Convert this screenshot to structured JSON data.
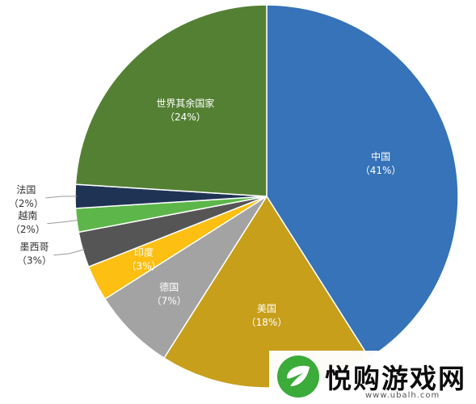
{
  "chart_data": {
    "type": "pie",
    "slices": [
      {
        "label": "中国",
        "value": 41,
        "pct_text": "（41%）",
        "color": "#3673b8",
        "label_pos": "inside"
      },
      {
        "label": "美国",
        "value": 18,
        "pct_text": "（18%）",
        "color": "#c79f1b",
        "label_pos": "inside"
      },
      {
        "label": "德国",
        "value": 7,
        "pct_text": "（7%）",
        "color": "#a3a3a3",
        "label_pos": "inside"
      },
      {
        "label": "印度",
        "value": 3,
        "pct_text": "（3%）",
        "color": "#fcbf12",
        "label_pos": "inside"
      },
      {
        "label": "墨西哥",
        "value": 3,
        "pct_text": "（3%）",
        "color": "#555555",
        "label_pos": "outside"
      },
      {
        "label": "越南",
        "value": 2,
        "pct_text": "（2%）",
        "color": "#5db649",
        "label_pos": "outside"
      },
      {
        "label": "法国",
        "value": 2,
        "pct_text": "（2%）",
        "color": "#1f3454",
        "label_pos": "outside"
      },
      {
        "label": "世界其余国家",
        "value": 24,
        "pct_text": "（24%）",
        "color": "#548034",
        "label_pos": "inside"
      }
    ],
    "start": "12 o'clock",
    "direction": "clockwise",
    "legend": "none"
  },
  "watermark": {
    "text": "悦购游戏网",
    "url": "www.ubalh.com",
    "logo_color": "#3bab3a",
    "icon": "leaf-logo-icon"
  }
}
